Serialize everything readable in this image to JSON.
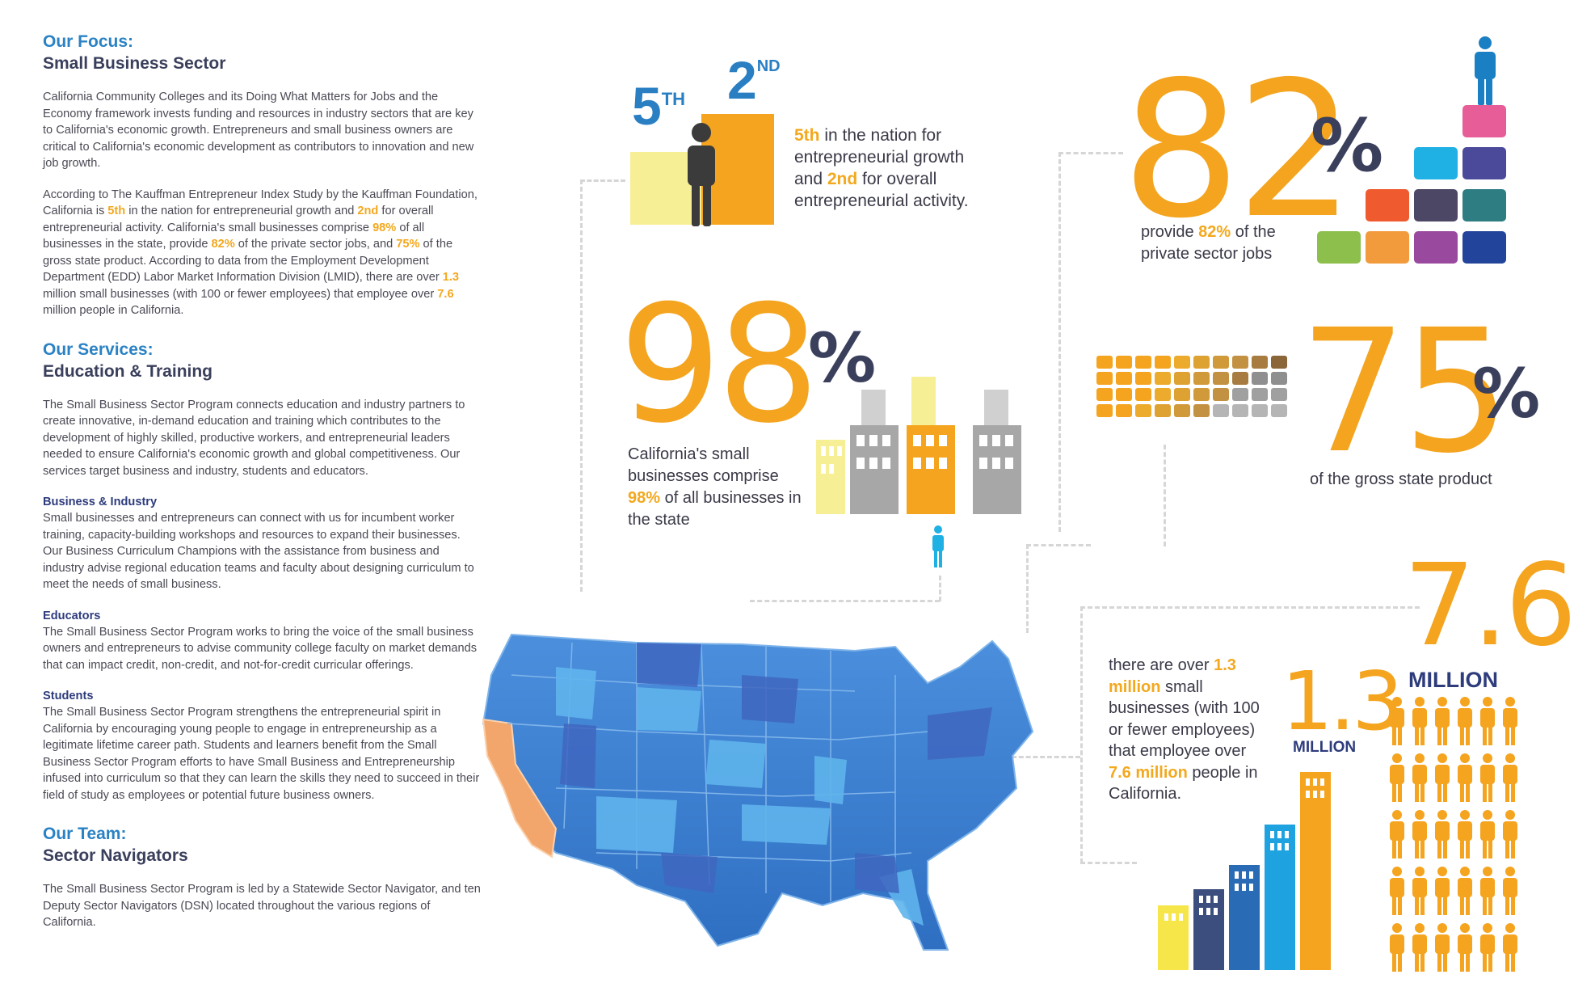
{
  "focus": {
    "label": "Our Focus:",
    "title": "Small Business Sector",
    "p1": "California Community Colleges and its Doing What Matters for Jobs and the Economy framework invests funding and resources in industry sectors that are key to California's economic growth. Entrepreneurs and small business owners are critical to California's economic development as contributors to innovation and new job growth.",
    "p2": [
      "According to The Kauffman Entrepreneur Index Study by the Kauffman Foundation, California is ",
      "5th",
      " in the nation for entrepreneurial growth and ",
      "2nd",
      " for overall entrepreneurial activity. California's small businesses comprise ",
      "98%",
      " of all businesses in the state, provide ",
      "82%",
      " of the private sector jobs, and ",
      "75%",
      " of the gross state product. According to data from the Employment Development Department (EDD) Labor Market Information Division (LMID), there are over ",
      "1.3",
      " million small businesses (with 100 or fewer employees) that employee over ",
      "7.6",
      " million people in California."
    ]
  },
  "services": {
    "label": "Our Services:",
    "title": "Education & Training",
    "p1": "The Small Business Sector Program connects education and industry partners to create innovative, in-demand education and training which contributes to the development of highly skilled, productive workers, and entrepreneurial leaders needed to ensure California's economic growth and global competitiveness. Our services target business and industry, students and educators.",
    "business_title": "Business & Industry",
    "business_text": "Small businesses and entrepreneurs can connect with us for incumbent worker training, capacity-building workshops and resources to expand their businesses. Our Business Curriculum Champions with the assistance from business and industry advise regional education teams and faculty about designing curriculum to meet the needs of small business.",
    "educators_title": "Educators",
    "educators_text": "The Small Business Sector Program works to bring the voice of the small business owners and entrepreneurs to advise community college faculty on market demands that can impact credit, non-credit, and not-for-credit curricular offerings.",
    "students_title": "Students",
    "students_text": "The Small Business Sector Program strengthens the entrepreneurial spirit in California by encouraging young people to engage in entrepreneurship as a legitimate lifetime career path. Students and learners benefit from the Small Business Sector Program efforts to have Small Business and Entrepreneurship infused into curriculum so that they can learn the skills they need to succeed in their field of study as employees or potential future business owners."
  },
  "team": {
    "label": "Our Team:",
    "title": "Sector Navigators",
    "p1": "The Small Business Sector Program is led by a Statewide Sector Navigator, and ten Deputy Sector Navigators (DSN) located throughout the various regions of California."
  },
  "rank": {
    "fifth": "5",
    "fifth_sup": "TH",
    "second": "2",
    "second_sup": "ND",
    "text": [
      "5th",
      " in the nation for entrepreneurial growth and ",
      "2nd",
      " for overall entrepreneurial activity."
    ]
  },
  "stat82": {
    "number": "82",
    "percent": "%",
    "text": [
      "provide ",
      "82%",
      " of the private sector jobs"
    ]
  },
  "stat98": {
    "number": "98",
    "percent": "%",
    "text": [
      "California's small businesses comprise ",
      "98%",
      " of all businesses in the state"
    ]
  },
  "stat75": {
    "number": "75",
    "percent": "%",
    "text": "of the gross state product"
  },
  "stat13": {
    "number": "1.3",
    "unit": "MILLION"
  },
  "stat76": {
    "number": "7.6",
    "unit": "MILLION"
  },
  "million_text": [
    "there are over ",
    "1.3 million",
    " small businesses (with 100 or fewer employees) that employee over ",
    "7.6 million",
    " people in California."
  ],
  "colors": {
    "orange": "#f4a41e",
    "navy": "#3a3f5c",
    "blue": "#2a82c4",
    "california": "#f2a66b",
    "map_blue": "#3b7fd0"
  },
  "block_colors": [
    "#e75d97",
    "#1fb0e4",
    "#4b4a9a",
    "#ef5a2e",
    "#4d4766",
    "#2d7d83",
    "#8cbf4b",
    "#f29b3c",
    "#9a4a9e",
    "#22449a"
  ],
  "icons": [
    "person-icon",
    "building-icon",
    "us-map"
  ]
}
